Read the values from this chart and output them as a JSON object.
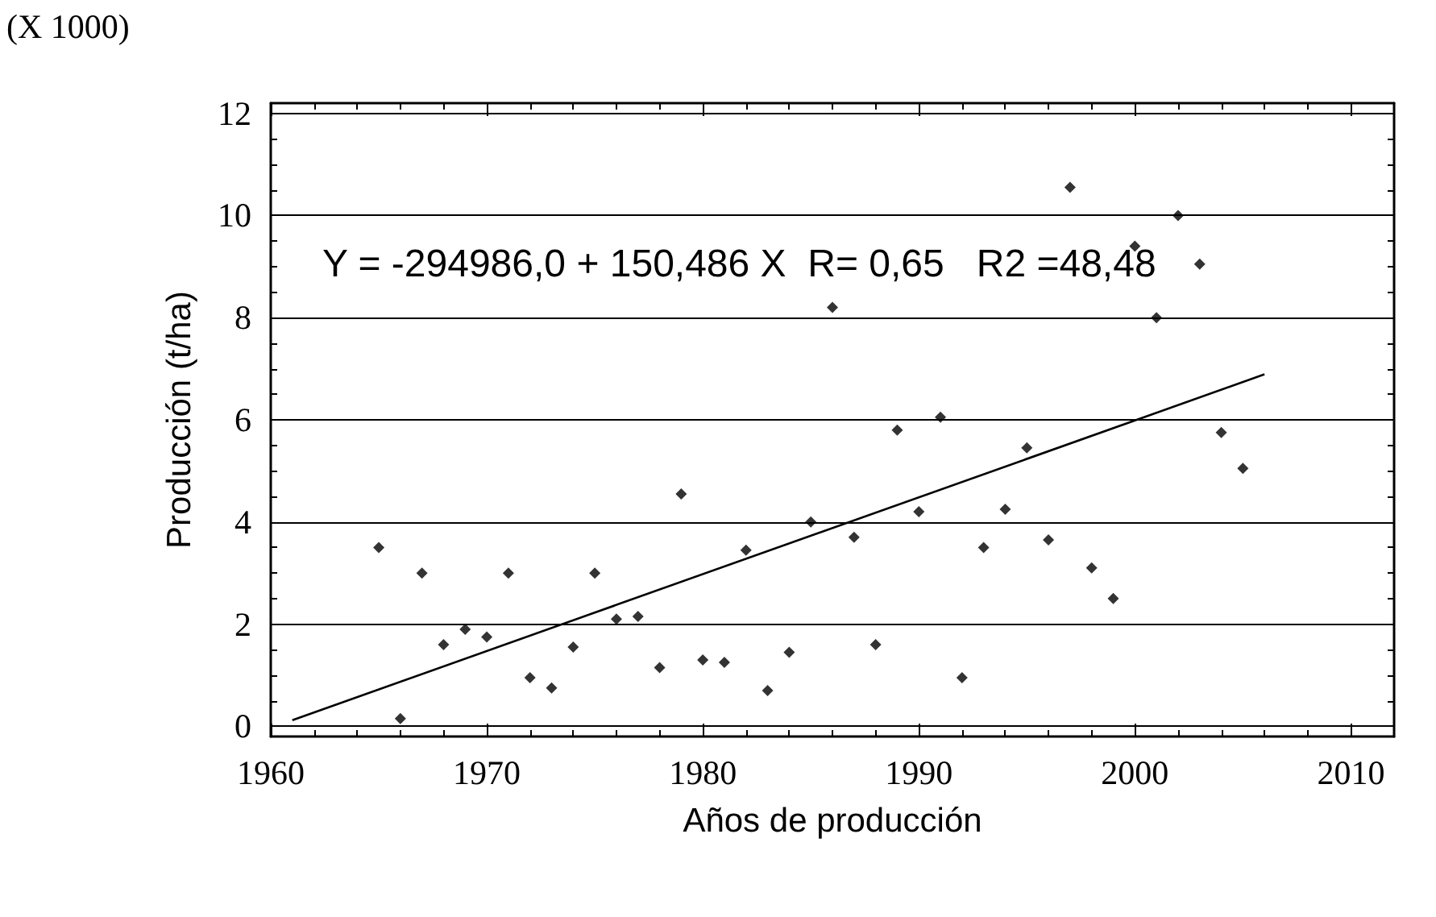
{
  "chart_data": {
    "type": "scatter",
    "xlabel": "Años de producción",
    "ylabel": "Producción (t/ha)",
    "annotations": [
      "(X 1000)",
      "Y = -294986,0 + 150,486 X  R= 0,65   R2 =48,48"
    ],
    "xlim": [
      1960,
      2012
    ],
    "xticks": [
      1960,
      1970,
      1980,
      1990,
      2000,
      2010
    ],
    "ylim": [
      -0.2,
      12.2
    ],
    "yticks": [
      0,
      2,
      4,
      6,
      8,
      10,
      12
    ],
    "grid": "y",
    "series": [
      {
        "color": "#000000",
        "marker": "diamond",
        "x": [
          1965,
          1966,
          1967,
          1968,
          1969,
          1970,
          1971,
          1972,
          1973,
          1974,
          1975,
          1976,
          1977,
          1978,
          1979,
          1980,
          1981,
          1982,
          1983,
          1984,
          1985,
          1986,
          1987,
          1988,
          1989,
          1990,
          1991,
          1992,
          1993,
          1994,
          1995,
          1996,
          1997,
          1998,
          1999,
          2000,
          2001,
          2002,
          2003,
          2004,
          2005
        ],
        "values": [
          3.5,
          0.15,
          3.0,
          1.6,
          1.9,
          1.75,
          3.0,
          0.95,
          0.75,
          1.55,
          3.0,
          2.1,
          2.15,
          1.15,
          4.55,
          1.3,
          1.25,
          3.45,
          0.7,
          1.45,
          4.0,
          8.2,
          3.7,
          1.6,
          5.8,
          4.2,
          6.05,
          0.95,
          3.5,
          4.25,
          5.45,
          3.65,
          10.55,
          3.1,
          2.5,
          9.4,
          8.0,
          10.0,
          9.05,
          5.75,
          5.05
        ]
      },
      {
        "type": "line",
        "color": "#000000",
        "marker": "none",
        "line_style": "solid",
        "x": [
          1961,
          2006
        ],
        "values": [
          0.12,
          6.89
        ]
      }
    ]
  }
}
